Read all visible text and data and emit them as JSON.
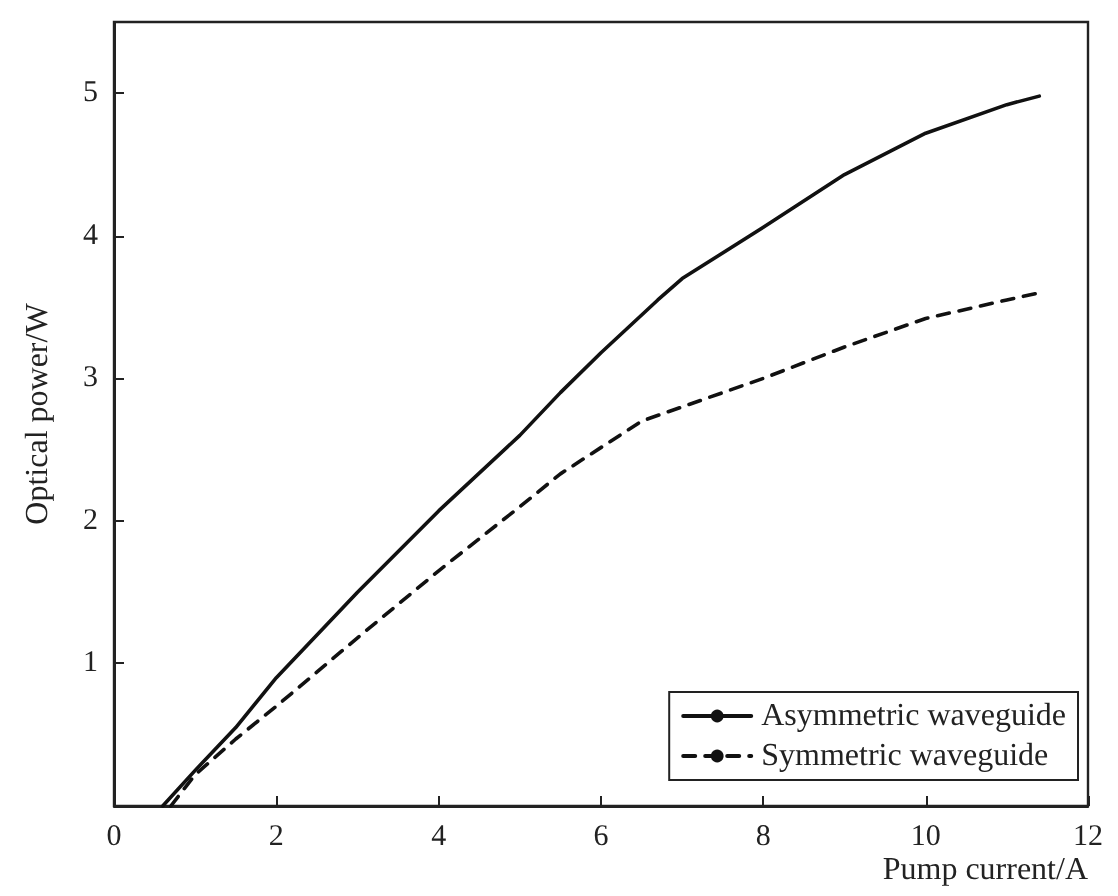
{
  "chart_data": {
    "type": "line",
    "xlabel": "Pump current/A",
    "ylabel": "Optical power/W",
    "xlim": [
      0,
      12
    ],
    "ylim": [
      0,
      5.5
    ],
    "xticks": [
      0,
      2,
      4,
      6,
      8,
      10,
      12
    ],
    "yticks": [
      1,
      2,
      3,
      4,
      5
    ],
    "grid": false,
    "legend": "bottom right",
    "marker": "none",
    "series": [
      {
        "name": "Asymmetric waveguide",
        "color": "#111111",
        "line_style": "solid",
        "x": [
          0.6,
          1,
          1.5,
          2,
          3,
          4,
          5,
          5.5,
          6,
          6.7,
          7,
          8,
          9,
          10,
          11,
          11.4
        ],
        "values": [
          0,
          0.25,
          0.55,
          0.9,
          1.5,
          2.07,
          2.6,
          2.9,
          3.18,
          3.55,
          3.7,
          4.06,
          4.43,
          4.72,
          4.92,
          4.98
        ]
      },
      {
        "name": "Symmetric waveguide",
        "color": "#111111",
        "line_style": "dashed",
        "x": [
          0.7,
          1,
          1.5,
          2,
          3,
          4,
          5,
          5.5,
          6.5,
          8,
          9,
          10,
          11,
          11.4
        ],
        "values": [
          0,
          0.22,
          0.47,
          0.7,
          1.18,
          1.65,
          2.1,
          2.33,
          2.7,
          3.0,
          3.22,
          3.42,
          3.55,
          3.6
        ]
      }
    ]
  }
}
